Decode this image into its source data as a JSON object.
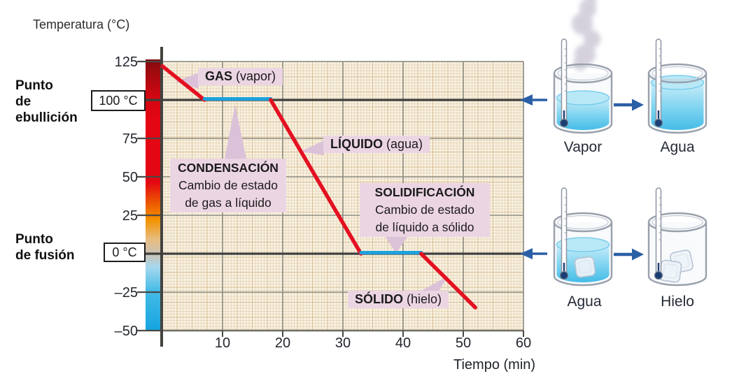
{
  "header": {
    "title": "Temperatura (°C)"
  },
  "left_labels": {
    "boiling": "Punto\nde\nebullición",
    "melting": "Punto\nde fusión"
  },
  "axis": {
    "x_label": "Tiempo (min)",
    "x_ticks": [
      {
        "text": "10",
        "value": 10
      },
      {
        "text": "20",
        "value": 20
      },
      {
        "text": "30",
        "value": 30
      },
      {
        "text": "40",
        "value": 40
      },
      {
        "text": "50",
        "value": 50
      },
      {
        "text": "60",
        "value": 60
      }
    ],
    "y_ticks": [
      {
        "text": "125",
        "value": 125
      },
      {
        "text": "75",
        "value": 75
      },
      {
        "text": "50",
        "value": 50
      },
      {
        "text": "25",
        "value": 25
      },
      {
        "text": "–25",
        "value": -25
      },
      {
        "text": "–50",
        "value": -50
      }
    ],
    "boxed_labels": [
      {
        "text": "100 °C",
        "value": 100,
        "name": "punto-de-ebullicion"
      },
      {
        "text": "0 °C",
        "value": 0,
        "name": "punto-de-fusion"
      }
    ]
  },
  "chart_data": {
    "type": "line",
    "xlabel": "Tiempo (min)",
    "ylabel": "Temperatura (°C)",
    "xlim": [
      0,
      60
    ],
    "ylim": [
      -50,
      125
    ],
    "x_ticks": [
      10,
      20,
      30,
      40,
      50,
      60
    ],
    "y_ticks": [
      125,
      100,
      75,
      50,
      25,
      0,
      -25,
      -50
    ],
    "grid": true,
    "segments": [
      {
        "phase": "GAS (vapor) enfriándose",
        "color": "red",
        "points": [
          [
            0,
            122
          ],
          [
            7,
            100
          ]
        ]
      },
      {
        "phase": "CONDENSACIÓN (cambio de estado de gas a líquido)",
        "color": "blue",
        "points": [
          [
            7,
            100
          ],
          [
            18,
            100
          ]
        ]
      },
      {
        "phase": "LÍQUIDO (agua) enfriándose",
        "color": "red",
        "points": [
          [
            18,
            100
          ],
          [
            33,
            0
          ]
        ]
      },
      {
        "phase": "SOLIDIFICACIÓN (cambio de estado de líquido a sólido)",
        "color": "blue",
        "points": [
          [
            33,
            0
          ],
          [
            43,
            0
          ]
        ]
      },
      {
        "phase": "SÓLIDO (hielo) enfriándose",
        "color": "red",
        "points": [
          [
            43,
            0
          ],
          [
            52,
            -35
          ]
        ]
      }
    ],
    "reference_lines": [
      {
        "label": "Punto de ebullición",
        "value": 100
      },
      {
        "label": "Punto de fusión",
        "value": 0
      }
    ]
  },
  "annotations": [
    {
      "title": "GAS",
      "suffix": " (vapor)"
    },
    {
      "title": "CONDENSACIÓN",
      "body": "Cambio de estado\nde gas a líquido"
    },
    {
      "title": "LÍQUIDO",
      "suffix": " (agua)"
    },
    {
      "title": "SOLIDIFICACIÓN",
      "body": "Cambio de estado\nde líquido a sólido"
    },
    {
      "title": "SÓLIDO",
      "suffix": " (hielo)"
    }
  ],
  "illustrations": {
    "rows": [
      {
        "from": {
          "label": "Vapor",
          "state": "vapor"
        },
        "to": {
          "label": "Agua",
          "state": "water-full"
        },
        "arrow": "right"
      },
      {
        "from": {
          "label": "Agua",
          "state": "water-ice"
        },
        "to": {
          "label": "Hielo",
          "state": "ice"
        },
        "arrow": "right"
      }
    ]
  },
  "colors": {
    "curve_red": "#e31021",
    "curve_blue": "#1da1dc",
    "reference_line": "#3f3f3d",
    "arrow_blue": "#2b5fa6",
    "bubble_bg": "#ecd5e3",
    "callout_wedge": "#dcc2d8",
    "grid_major": "#8c8c83",
    "plot_bg": "#f9f2e2",
    "colorbar": [
      "#80090e",
      "#e30613",
      "#f39200",
      "#ccc2b4",
      "#a5d8ee",
      "#14a3df"
    ]
  }
}
